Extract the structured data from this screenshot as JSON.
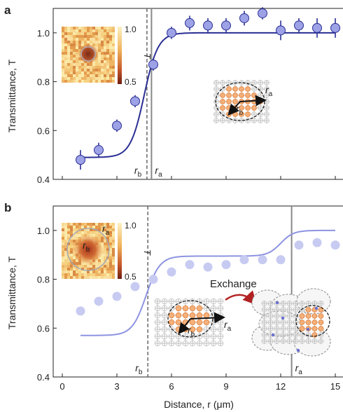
{
  "chart_data": [
    {
      "type": "scatter",
      "panel_label": "a",
      "ylabel": "Transmittance, T",
      "xlim": [
        -0.5,
        15.5
      ],
      "ylim": [
        0.4,
        1.1
      ],
      "yticks": [
        "0.4",
        "0.6",
        "0.8",
        "1.0"
      ],
      "grid": false,
      "marker_color": "#9da2e6",
      "fit_color": "#2a2f94",
      "points": {
        "x": [
          1,
          2,
          3,
          4,
          5,
          6,
          7,
          8,
          9,
          10,
          11,
          12,
          13,
          14,
          15
        ],
        "y": [
          0.48,
          0.52,
          0.62,
          0.72,
          0.87,
          1.0,
          1.04,
          1.03,
          1.03,
          1.06,
          1.08,
          1.01,
          1.03,
          1.02,
          1.02
        ],
        "err": [
          0.04,
          0.03,
          0.025,
          0.025,
          0.025,
          0.025,
          0.03,
          0.03,
          0.03,
          0.03,
          0.025,
          0.04,
          0.03,
          0.04,
          0.04
        ]
      },
      "fit": {
        "low": 0.49,
        "high": 1.0,
        "center": 4.5,
        "width": 0.38
      },
      "markers": {
        "rb_x": 4.65,
        "ra_x": 4.9,
        "rb_label": "r",
        "rb_sub": "b",
        "ra_label": "r",
        "ra_sub": "a"
      },
      "inset": {
        "colorbar_max": "1.0",
        "colorbar_min": "0.5",
        "colorbar_label": "T"
      },
      "schematic": {
        "ra_label": "r",
        "ra_sub": "a",
        "rb_label": "r",
        "rb_sub": "b"
      }
    },
    {
      "type": "scatter",
      "panel_label": "b",
      "ylabel": "Transmittance, T",
      "xlabel": "Distance, r (μm)",
      "xlim": [
        -0.5,
        15.5
      ],
      "ylim": [
        0.4,
        1.1
      ],
      "xticks": [
        0,
        3,
        6,
        9,
        12,
        15
      ],
      "yticks": [
        "0.4",
        "0.6",
        "0.8",
        "1.0"
      ],
      "grid": false,
      "marker_color": "#c7cbf2",
      "fit_color": "#8d93e0",
      "points": {
        "x": [
          1,
          2,
          3,
          4,
          5,
          6,
          7,
          8,
          9,
          10,
          11,
          12,
          13,
          14,
          15
        ],
        "y": [
          0.67,
          0.71,
          0.73,
          0.77,
          0.8,
          0.83,
          0.86,
          0.85,
          0.86,
          0.88,
          0.88,
          0.88,
          0.94,
          0.95,
          0.94
        ]
      },
      "fit": {
        "low": 0.57,
        "mid": 0.895,
        "high": 1.0,
        "c1": 4.6,
        "w1": 0.38,
        "c2": 12.0,
        "w2": 0.35
      },
      "markers": {
        "rb_x": 4.7,
        "ra_x": 12.6,
        "rb_label": "r",
        "rb_sub": "b",
        "ra_label": "r",
        "ra_sub": "a"
      },
      "inset": {
        "colorbar_max": "1.0",
        "colorbar_min": "0.5",
        "colorbar_label": "T",
        "ra_label": "r",
        "ra_sub": "a",
        "rb_label": "r",
        "rb_sub": "b"
      },
      "schematic": {
        "exchange_label": "Exchange",
        "ra_label": "r",
        "ra_sub": "a",
        "rb_label": "r",
        "rb_sub": "b"
      }
    }
  ]
}
